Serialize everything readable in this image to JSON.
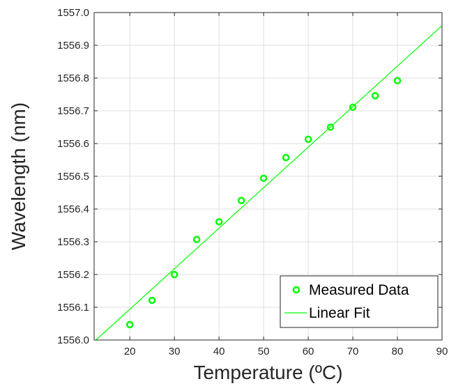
{
  "chart_data": {
    "type": "scatter",
    "title": "",
    "xlabel": "Temperature (ºC)",
    "ylabel": "Wavelength (nm)",
    "xlim": [
      12,
      90
    ],
    "ylim": [
      1556.0,
      1557.0
    ],
    "x_ticks": [
      "20",
      "30",
      "40",
      "50",
      "60",
      "70",
      "80",
      "90"
    ],
    "y_ticks": [
      "1556.0",
      "1556.1",
      "1556.2",
      "1556.3",
      "1556.4",
      "1556.5",
      "1556.6",
      "1556.7",
      "1556.8",
      "1556.9",
      "1557.0"
    ],
    "grid": true,
    "legend_position": "bottom-right",
    "colors": {
      "series": "#00ff00",
      "axis": "#262626",
      "grid": "#dfdfdf"
    },
    "series": [
      {
        "name": "Measured Data",
        "kind": "scatter",
        "marker": "circle-open",
        "x": [
          20,
          25,
          30,
          35,
          40,
          45,
          50,
          55,
          60,
          65,
          70,
          75,
          80
        ],
        "y": [
          1556.047,
          1556.121,
          1556.2,
          1556.307,
          1556.361,
          1556.426,
          1556.494,
          1556.557,
          1556.613,
          1556.65,
          1556.711,
          1556.746,
          1556.792
        ]
      },
      {
        "name": "Linear Fit",
        "kind": "line",
        "x": [
          12,
          90
        ],
        "y": [
          1555.995,
          1556.96
        ]
      }
    ]
  }
}
